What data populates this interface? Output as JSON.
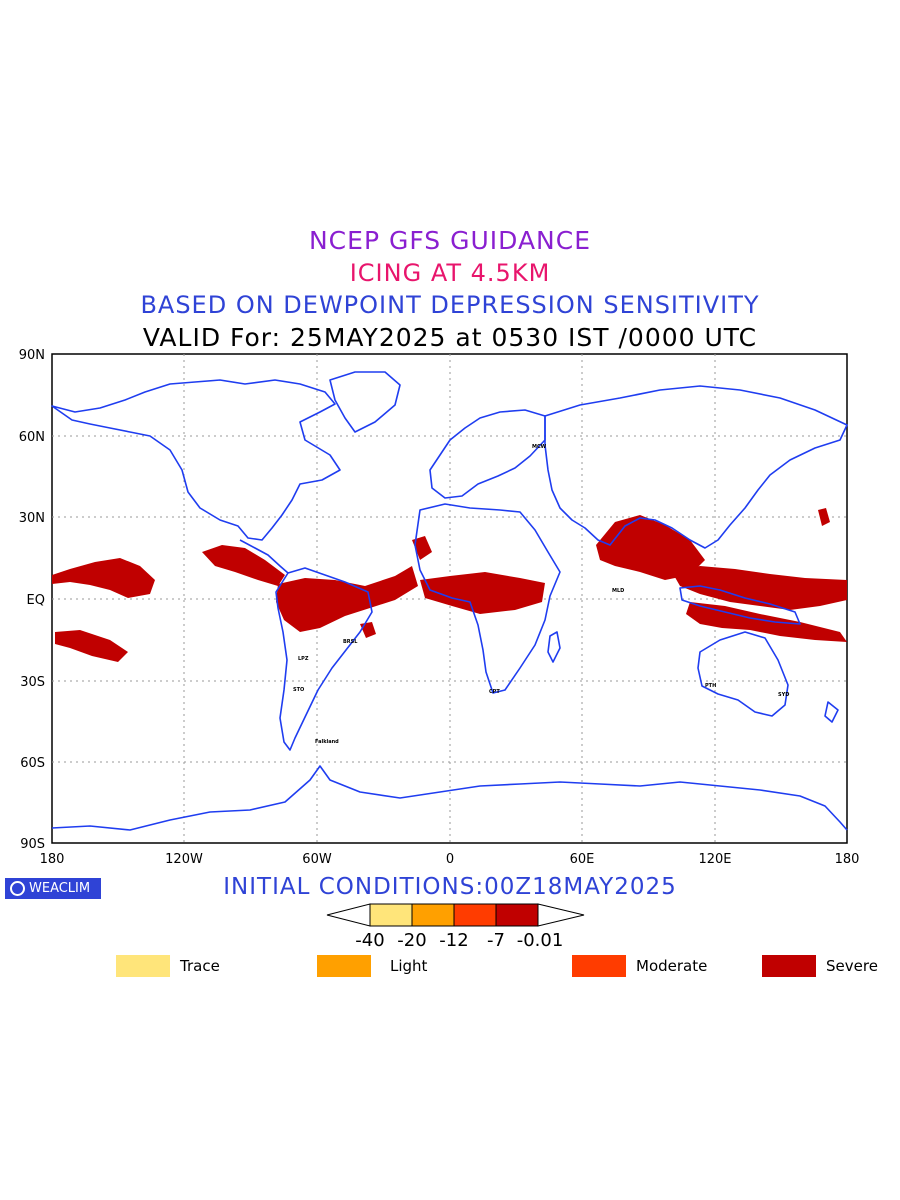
{
  "titles": {
    "line1": "NCEP GFS GUIDANCE",
    "line2": "ICING AT 4.5KM",
    "line3": "BASED ON DEWPOINT DEPRESSION SENSITIVITY",
    "line4": "VALID For: 25MAY2025 at 0530 IST /0000 UTC"
  },
  "colors": {
    "line1": "#8a1fd0",
    "line2": "#e8156c",
    "line3": "#2f43d6",
    "coast": "#1f3df0",
    "grid": "#9a9a9a",
    "trace": "#ffe57a",
    "light": "#ffa000",
    "moderate": "#ff3c00",
    "severe": "#c00000"
  },
  "axes": {
    "lat_labels": [
      "90N",
      "60N",
      "30N",
      "EQ",
      "30S",
      "60S",
      "90S"
    ],
    "lon_labels": [
      "180",
      "120W",
      "60W",
      "0",
      "60E",
      "120E",
      "180"
    ]
  },
  "cities": [
    "Falkland",
    "BRSL",
    "LPZ",
    "STO",
    "CPT",
    "PTH",
    "SYD",
    "MCW",
    "MLD"
  ],
  "watermark": "WEACLIM",
  "initial_conditions": "INITIAL CONDITIONS:00Z18MAY2025",
  "colorbar": {
    "ticks": [
      "-40",
      "-20",
      "-12",
      "-7",
      "-0.01"
    ]
  },
  "legend": [
    {
      "label": "Trace",
      "color": "#ffe57a"
    },
    {
      "label": "Light",
      "color": "#ffa000"
    },
    {
      "label": "Moderate",
      "color": "#ff3c00"
    },
    {
      "label": "Severe",
      "color": "#c00000"
    }
  ]
}
